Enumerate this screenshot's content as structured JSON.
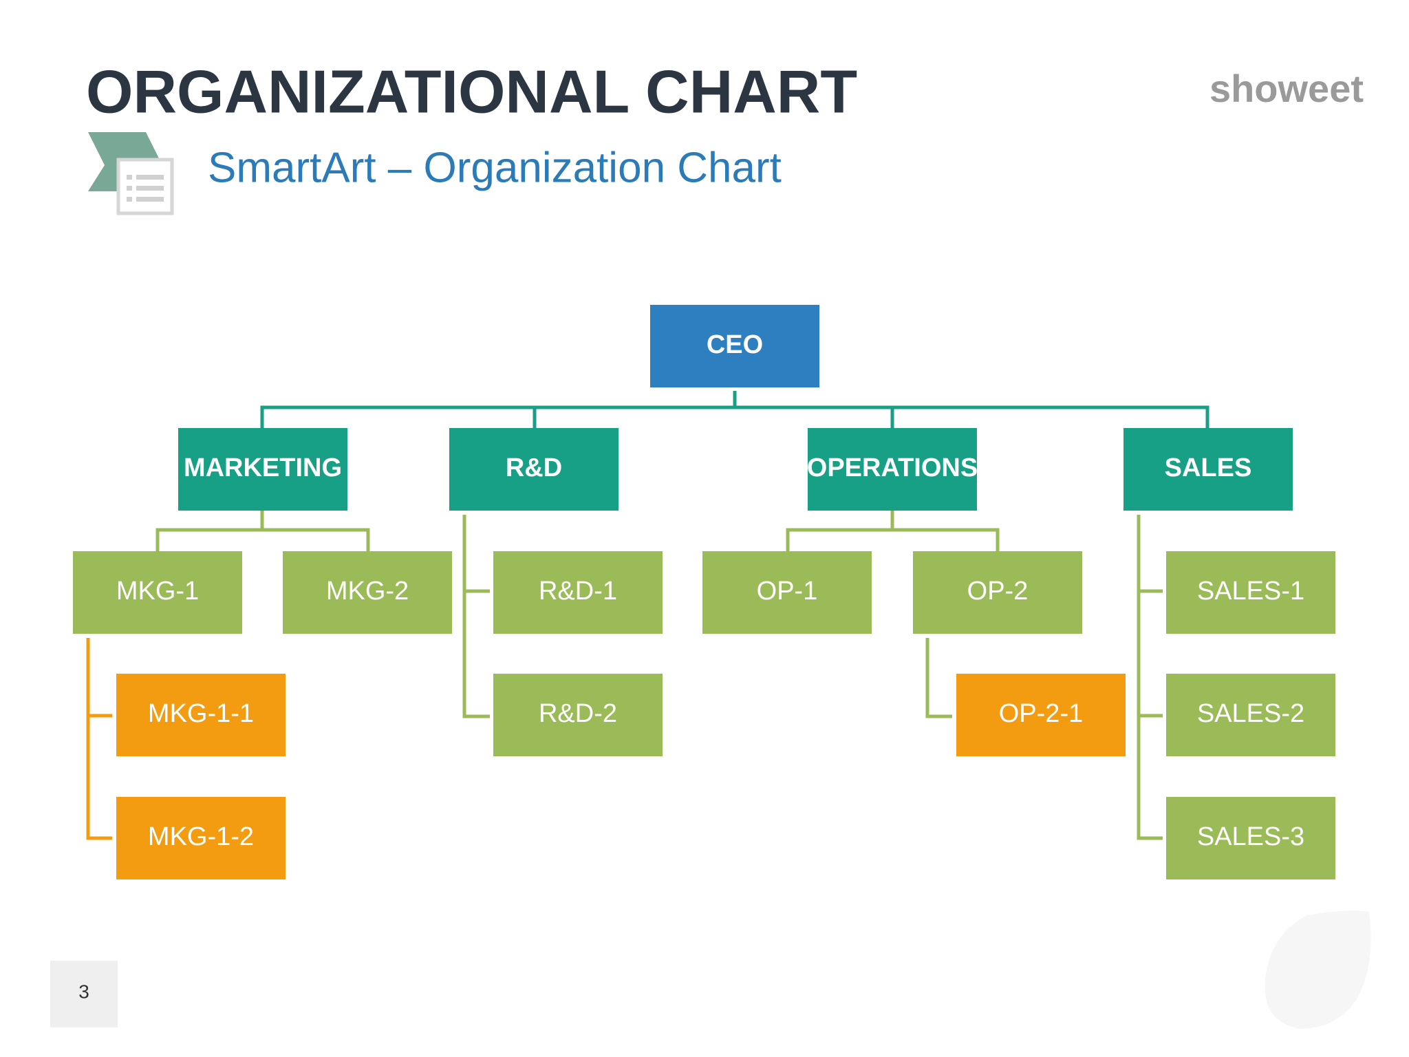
{
  "header": {
    "title": "ORGANIZATIONAL CHART",
    "subtitle": "SmartArt – Organization Chart",
    "logo": "showeet"
  },
  "nodes": [
    {
      "label": "CEO"
    },
    {
      "label": "MARKETING"
    },
    {
      "label": "R&D"
    },
    {
      "label": "OPERATIONS"
    },
    {
      "label": "SALES"
    },
    {
      "label": "MKG-1"
    },
    {
      "label": "MKG-2"
    },
    {
      "label": "R&D-1"
    },
    {
      "label": "R&D-2"
    },
    {
      "label": "OP-1"
    },
    {
      "label": "OP-2"
    },
    {
      "label": "SALES-1"
    },
    {
      "label": "SALES-2"
    },
    {
      "label": "SALES-3"
    },
    {
      "label": "MKG-1-1"
    },
    {
      "label": "MKG-1-2"
    },
    {
      "label": "OP-2-1"
    }
  ],
  "footer": {
    "page_number": "3"
  }
}
